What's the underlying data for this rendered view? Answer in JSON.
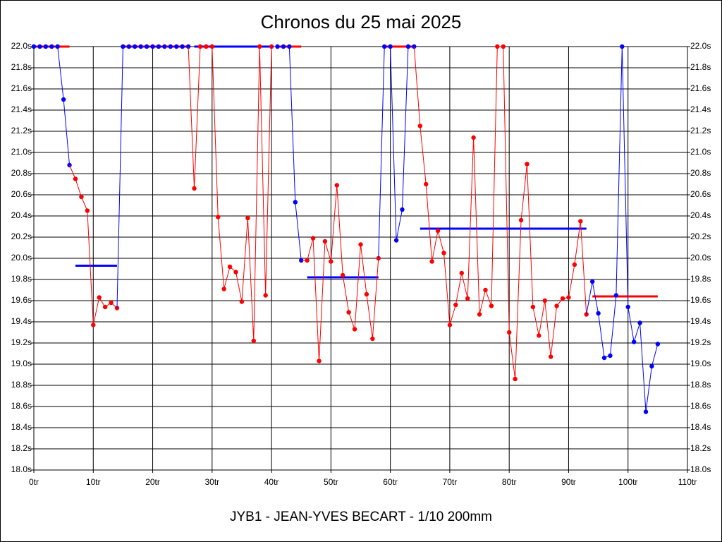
{
  "chart_data": {
    "type": "line",
    "title": "Chronos du 25 mai 2025",
    "footer": "JYB1 - JEAN-YVES BECART - 1/10 200mm",
    "xlim": [
      0,
      110
    ],
    "xticks": [
      {
        "value": 0,
        "label": "0tr"
      },
      {
        "value": 10,
        "label": "10tr"
      },
      {
        "value": 20,
        "label": "20tr"
      },
      {
        "value": 30,
        "label": "30tr"
      },
      {
        "value": 40,
        "label": "40tr"
      },
      {
        "value": 50,
        "label": "50tr"
      },
      {
        "value": 60,
        "label": "60tr"
      },
      {
        "value": 70,
        "label": "70tr"
      },
      {
        "value": 80,
        "label": "80tr"
      },
      {
        "value": 90,
        "label": "90tr"
      },
      {
        "value": 100,
        "label": "100tr"
      },
      {
        "value": 110,
        "label": "110tr"
      }
    ],
    "ylim": [
      18,
      22
    ],
    "yticks": [
      {
        "value": 18,
        "label": "18.0s"
      },
      {
        "value": 18.2,
        "label": "18.2s"
      },
      {
        "value": 18.4,
        "label": "18.4s"
      },
      {
        "value": 18.6,
        "label": "18.6s"
      },
      {
        "value": 18.8,
        "label": "18.8s"
      },
      {
        "value": 19,
        "label": "19.0s"
      },
      {
        "value": 19.2,
        "label": "19.2s"
      },
      {
        "value": 19.4,
        "label": "19.4s"
      },
      {
        "value": 19.6,
        "label": "19.6s"
      },
      {
        "value": 19.8,
        "label": "19.8s"
      },
      {
        "value": 20,
        "label": "20.0s"
      },
      {
        "value": 20.2,
        "label": "20.2s"
      },
      {
        "value": 20.4,
        "label": "20.4s"
      },
      {
        "value": 20.6,
        "label": "20.6s"
      },
      {
        "value": 20.8,
        "label": "20.8s"
      },
      {
        "value": 21,
        "label": "21.0s"
      },
      {
        "value": 21.2,
        "label": "21.2s"
      },
      {
        "value": 21.4,
        "label": "21.4s"
      },
      {
        "value": 21.6,
        "label": "21.6s"
      },
      {
        "value": 21.8,
        "label": "21.8s"
      },
      {
        "value": 22,
        "label": "22.0s"
      }
    ],
    "grid": true,
    "series": [
      {
        "color": "#0000ff",
        "x": [
          0,
          1,
          2,
          3,
          4,
          5,
          6
        ],
        "values": [
          22,
          22,
          22,
          22,
          22,
          21.5,
          20.88
        ]
      },
      {
        "color": "#ff0000",
        "x": [
          7,
          8,
          9,
          10,
          11,
          12,
          13,
          14
        ],
        "values": [
          20.75,
          20.58,
          20.45,
          19.37,
          19.63,
          19.54,
          19.58,
          19.53
        ]
      },
      {
        "color": "#0000ff",
        "x": [
          15,
          16,
          17,
          18,
          19,
          20,
          21,
          22,
          23,
          24,
          25,
          26
        ],
        "values": [
          22,
          22,
          22,
          22,
          22,
          22,
          22,
          22,
          22,
          22,
          22,
          22
        ]
      },
      {
        "color": "#ff0000",
        "x": [
          27,
          28,
          29,
          30,
          31,
          32,
          33,
          34,
          35,
          36,
          37,
          38,
          39,
          40
        ],
        "values": [
          20.66,
          22,
          22,
          22,
          20.39,
          19.71,
          19.92,
          19.87,
          19.59,
          20.38,
          19.22,
          22,
          19.65,
          22
        ]
      },
      {
        "color": "#0000ff",
        "x": [
          41,
          42,
          43,
          44,
          45
        ],
        "values": [
          22,
          22,
          22,
          20.53,
          19.98
        ]
      },
      {
        "color": "#ff0000",
        "x": [
          46,
          47,
          48,
          49,
          50,
          51,
          52,
          53,
          54,
          55,
          56,
          57,
          58
        ],
        "values": [
          19.98,
          20.19,
          19.03,
          20.16,
          19.97,
          20.69,
          19.84,
          19.49,
          19.33,
          20.13,
          19.66,
          19.24,
          20
        ]
      },
      {
        "color": "#0000ff",
        "x": [
          59,
          60,
          61,
          62,
          63,
          64
        ],
        "values": [
          22,
          22,
          20.17,
          20.46,
          22,
          22
        ]
      },
      {
        "color": "#ff0000",
        "x": [
          65,
          66,
          67,
          68,
          69,
          70,
          71,
          72,
          73,
          74,
          75,
          76,
          77,
          78,
          79,
          80,
          81,
          82,
          83,
          84,
          85,
          86,
          87,
          88,
          89,
          90,
          91,
          92,
          93
        ],
        "values": [
          21.25,
          20.7,
          19.97,
          20.26,
          20.05,
          19.37,
          19.56,
          19.86,
          19.62,
          21.14,
          19.47,
          19.7,
          19.55,
          22,
          22,
          19.3,
          18.86,
          20.36,
          20.89,
          19.54,
          19.27,
          19.6,
          19.07,
          19.55,
          19.62,
          19.63,
          19.94,
          20.35,
          19.47
        ]
      },
      {
        "color": "#0000ff",
        "x": [
          94,
          95,
          96,
          97,
          98,
          99,
          100,
          101,
          102,
          103,
          104,
          105
        ],
        "values": [
          19.78,
          19.48,
          19.06,
          19.08,
          19.65,
          22,
          19.54,
          19.21,
          19.39,
          18.55,
          18.98,
          19.19
        ]
      }
    ],
    "averages": [
      {
        "color": "#ff0000",
        "x": [
          0,
          6
        ],
        "value": 22
      },
      {
        "color": "#0000ff",
        "x": [
          7,
          14
        ],
        "value": 19.93
      },
      {
        "color": "#ff0000",
        "x": [
          15,
          26
        ],
        "value": 22
      },
      {
        "color": "#0000ff",
        "x": [
          27,
          40
        ],
        "value": 22
      },
      {
        "color": "#ff0000",
        "x": [
          41,
          45
        ],
        "value": 22
      },
      {
        "color": "#0000ff",
        "x": [
          46,
          58
        ],
        "value": 19.82
      },
      {
        "color": "#ff0000",
        "x": [
          59,
          64
        ],
        "value": 22
      },
      {
        "color": "#0000ff",
        "x": [
          65,
          93
        ],
        "value": 20.28
      },
      {
        "color": "#ff0000",
        "x": [
          94,
          105
        ],
        "value": 19.64
      }
    ]
  }
}
